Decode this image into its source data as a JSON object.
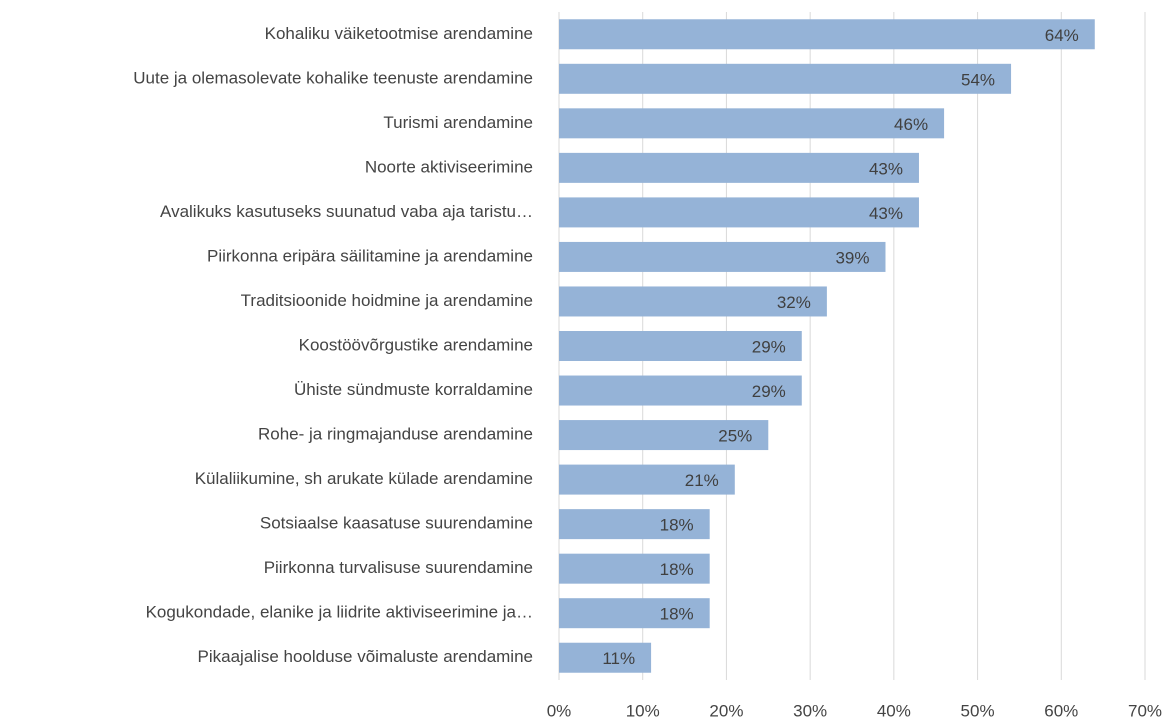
{
  "chart_data": {
    "type": "bar",
    "orientation": "horizontal",
    "categories": [
      "Kohaliku väiketootmise arendamine",
      "Uute ja olemasolevate kohalike teenuste arendamine",
      "Turismi arendamine",
      "Noorte aktiviseerimine",
      "Avalikuks kasutuseks suunatud vaba aja taristu…",
      "Piirkonna eripära säilitamine ja arendamine",
      "Traditsioonide hoidmine ja arendamine",
      "Koostöövõrgustike arendamine",
      "Ühiste sündmuste korraldamine",
      "Rohe- ja ringmajanduse arendamine",
      "Külaliikumine, sh arukate külade arendamine",
      "Sotsiaalse kaasatuse suurendamine",
      "Piirkonna turvalisuse suurendamine",
      "Kogukondade, elanike ja liidrite aktiviseerimine ja…",
      "Pikaajalise hoolduse võimaluste arendamine"
    ],
    "values": [
      64,
      54,
      46,
      43,
      43,
      39,
      32,
      29,
      29,
      25,
      21,
      18,
      18,
      18,
      11
    ],
    "value_labels": [
      "64%",
      "54%",
      "46%",
      "43%",
      "43%",
      "39%",
      "32%",
      "29%",
      "29%",
      "25%",
      "21%",
      "18%",
      "18%",
      "18%",
      "11%"
    ],
    "color": "#95b3d7",
    "xlim": [
      0,
      70
    ],
    "xticks": [
      {
        "value": 0,
        "label": "0%"
      },
      {
        "value": 10,
        "label": "10%"
      },
      {
        "value": 20,
        "label": "20%"
      },
      {
        "value": 30,
        "label": "30%"
      },
      {
        "value": 40,
        "label": "40%"
      },
      {
        "value": 50,
        "label": "50%"
      },
      {
        "value": 60,
        "label": "60%"
      },
      {
        "value": 70,
        "label": "70%"
      }
    ],
    "grid": true
  }
}
